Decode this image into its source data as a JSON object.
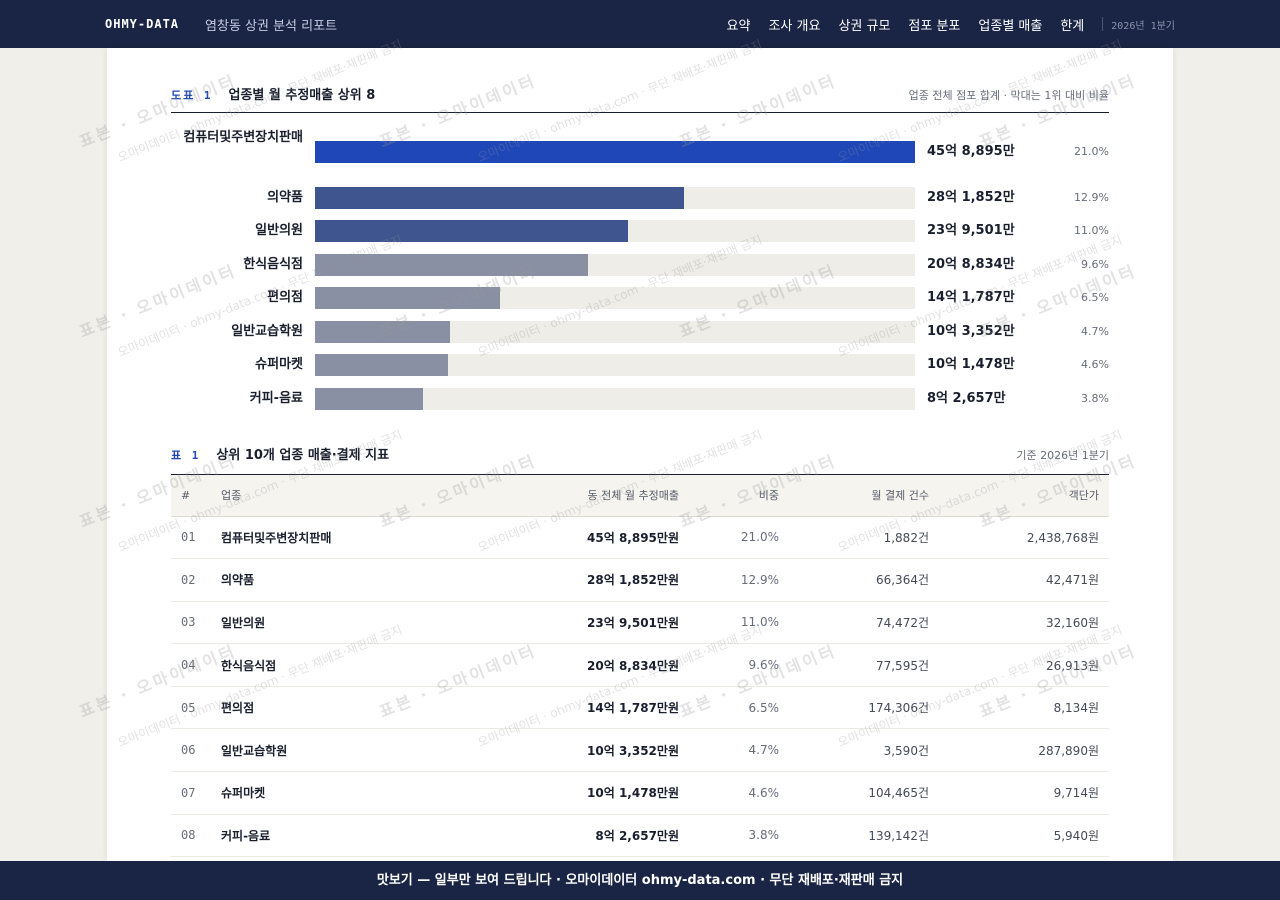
{
  "header": {
    "brand": "OHMY-DATA",
    "report_title": "염창동 상권 분석 리포트",
    "nav": [
      "요약",
      "조사 개요",
      "상권 규모",
      "점포 분포",
      "업종별 매출",
      "한계"
    ],
    "period": "2026년 1분기"
  },
  "figure": {
    "tag": "도표 1",
    "title": "업종별 월 추정매출 상위 8",
    "note": "업종 전체 점포 합계 · 막대는 1위 대비 비율"
  },
  "chart_data": {
    "type": "bar",
    "orientation": "horizontal",
    "title": "업종별 월 추정매출 상위 8",
    "categories": [
      "컴퓨터및주변장치판매",
      "의약품",
      "일반의원",
      "한식음식점",
      "편의점",
      "일반교습학원",
      "슈퍼마켓",
      "커피-음료"
    ],
    "values_label": [
      "45억 8,895만",
      "28억 1,852만",
      "23억 9,501만",
      "20억 8,834만",
      "14억 1,787만",
      "10억 3,352만",
      "10억 1,478만",
      "8억 2,657만"
    ],
    "values": [
      458895,
      281852,
      239501,
      208834,
      141787,
      103352,
      101478,
      82657
    ],
    "unit": "만원",
    "share_labels": [
      "21.0%",
      "12.9%",
      "11.0%",
      "9.6%",
      "6.5%",
      "4.7%",
      "4.6%",
      "3.8%"
    ],
    "xlim": [
      0,
      458895
    ],
    "colors": [
      "#1f47b8",
      "#3f5590",
      "#3f5590",
      "#8990a3",
      "#8990a3",
      "#8990a3",
      "#8990a3",
      "#8990a3"
    ]
  },
  "table": {
    "tag": "표 1",
    "title": "상위 10개 업종 매출·결제 지표",
    "note": "기준 2026년 1분기",
    "columns": [
      "#",
      "업종",
      "동 전체 월 추정매출",
      "비중",
      "월 결제 건수",
      "객단가"
    ],
    "rows": [
      {
        "no": "01",
        "name": "컴퓨터및주변장치판매",
        "sales": "45억 8,895만원",
        "share": "21.0%",
        "count": "1,882건",
        "price": "2,438,768원"
      },
      {
        "no": "02",
        "name": "의약품",
        "sales": "28억 1,852만원",
        "share": "12.9%",
        "count": "66,364건",
        "price": "42,471원"
      },
      {
        "no": "03",
        "name": "일반의원",
        "sales": "23억 9,501만원",
        "share": "11.0%",
        "count": "74,472건",
        "price": "32,160원"
      },
      {
        "no": "04",
        "name": "한식음식점",
        "sales": "20억 8,834만원",
        "share": "9.6%",
        "count": "77,595건",
        "price": "26,913원"
      },
      {
        "no": "05",
        "name": "편의점",
        "sales": "14억 1,787만원",
        "share": "6.5%",
        "count": "174,306건",
        "price": "8,134원"
      },
      {
        "no": "06",
        "name": "일반교습학원",
        "sales": "10억 3,352만원",
        "share": "4.7%",
        "count": "3,590건",
        "price": "287,890원"
      },
      {
        "no": "07",
        "name": "슈퍼마켓",
        "sales": "10억 1,478만원",
        "share": "4.6%",
        "count": "104,465건",
        "price": "9,714원"
      },
      {
        "no": "08",
        "name": "커피-음료",
        "sales": "8억 2,657만원",
        "share": "3.8%",
        "count": "139,142건",
        "price": "5,940원"
      }
    ]
  },
  "footer": {
    "text": "맛보기 — 일부만 보여 드립니다 · 오마이데이터 ohmy-data.com · 무단 재배포·재판매 금지"
  },
  "watermark": {
    "big": "표본 · 오마이데이터",
    "small": "오마이데이터 · ohmy-data.com · 무단 재배포·재판매 금지"
  }
}
